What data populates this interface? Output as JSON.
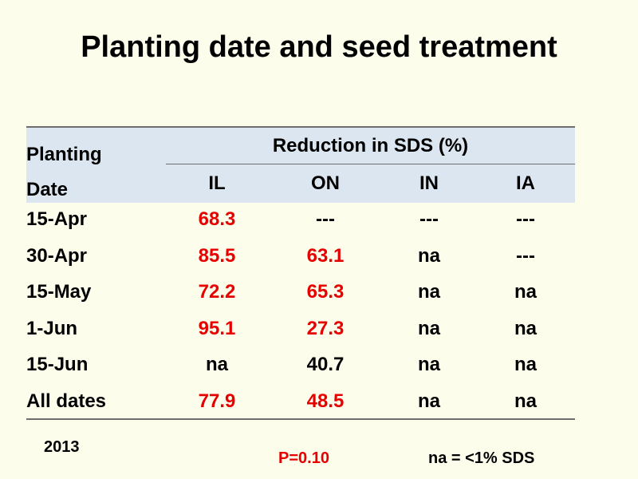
{
  "title": "Planting date and seed treatment",
  "table": {
    "header_col0": [
      "Planting",
      "Date"
    ],
    "group_header": "Reduction in SDS (%)",
    "columns": [
      "IL",
      "ON",
      "IN",
      "IA"
    ],
    "rows": [
      {
        "label": "15-Apr",
        "values": [
          "68.3",
          "---",
          "---",
          "---"
        ],
        "red": [
          true,
          false,
          false,
          false
        ]
      },
      {
        "label": "30-Apr",
        "values": [
          "85.5",
          "63.1",
          "na",
          "---"
        ],
        "red": [
          true,
          true,
          false,
          false
        ]
      },
      {
        "label": "15-May",
        "values": [
          "72.2",
          "65.3",
          "na",
          "na"
        ],
        "red": [
          true,
          true,
          false,
          false
        ]
      },
      {
        "label": "1-Jun",
        "values": [
          "95.1",
          "27.3",
          "na",
          "na"
        ],
        "red": [
          true,
          true,
          false,
          false
        ]
      },
      {
        "label": "15-Jun",
        "values": [
          "na",
          "40.7",
          "na",
          "na"
        ],
        "red": [
          false,
          false,
          false,
          false
        ]
      },
      {
        "label": "All dates",
        "values": [
          "77.9",
          "48.5",
          "na",
          "na"
        ],
        "red": [
          true,
          true,
          false,
          false
        ]
      }
    ]
  },
  "notes": {
    "year": "2013",
    "pvalue": "P=0.10",
    "legend": "na = <1% SDS"
  },
  "colors": {
    "highlight": "#e60000",
    "header_bg": "#dce6f1",
    "slide_bg": "#fdfdec"
  }
}
